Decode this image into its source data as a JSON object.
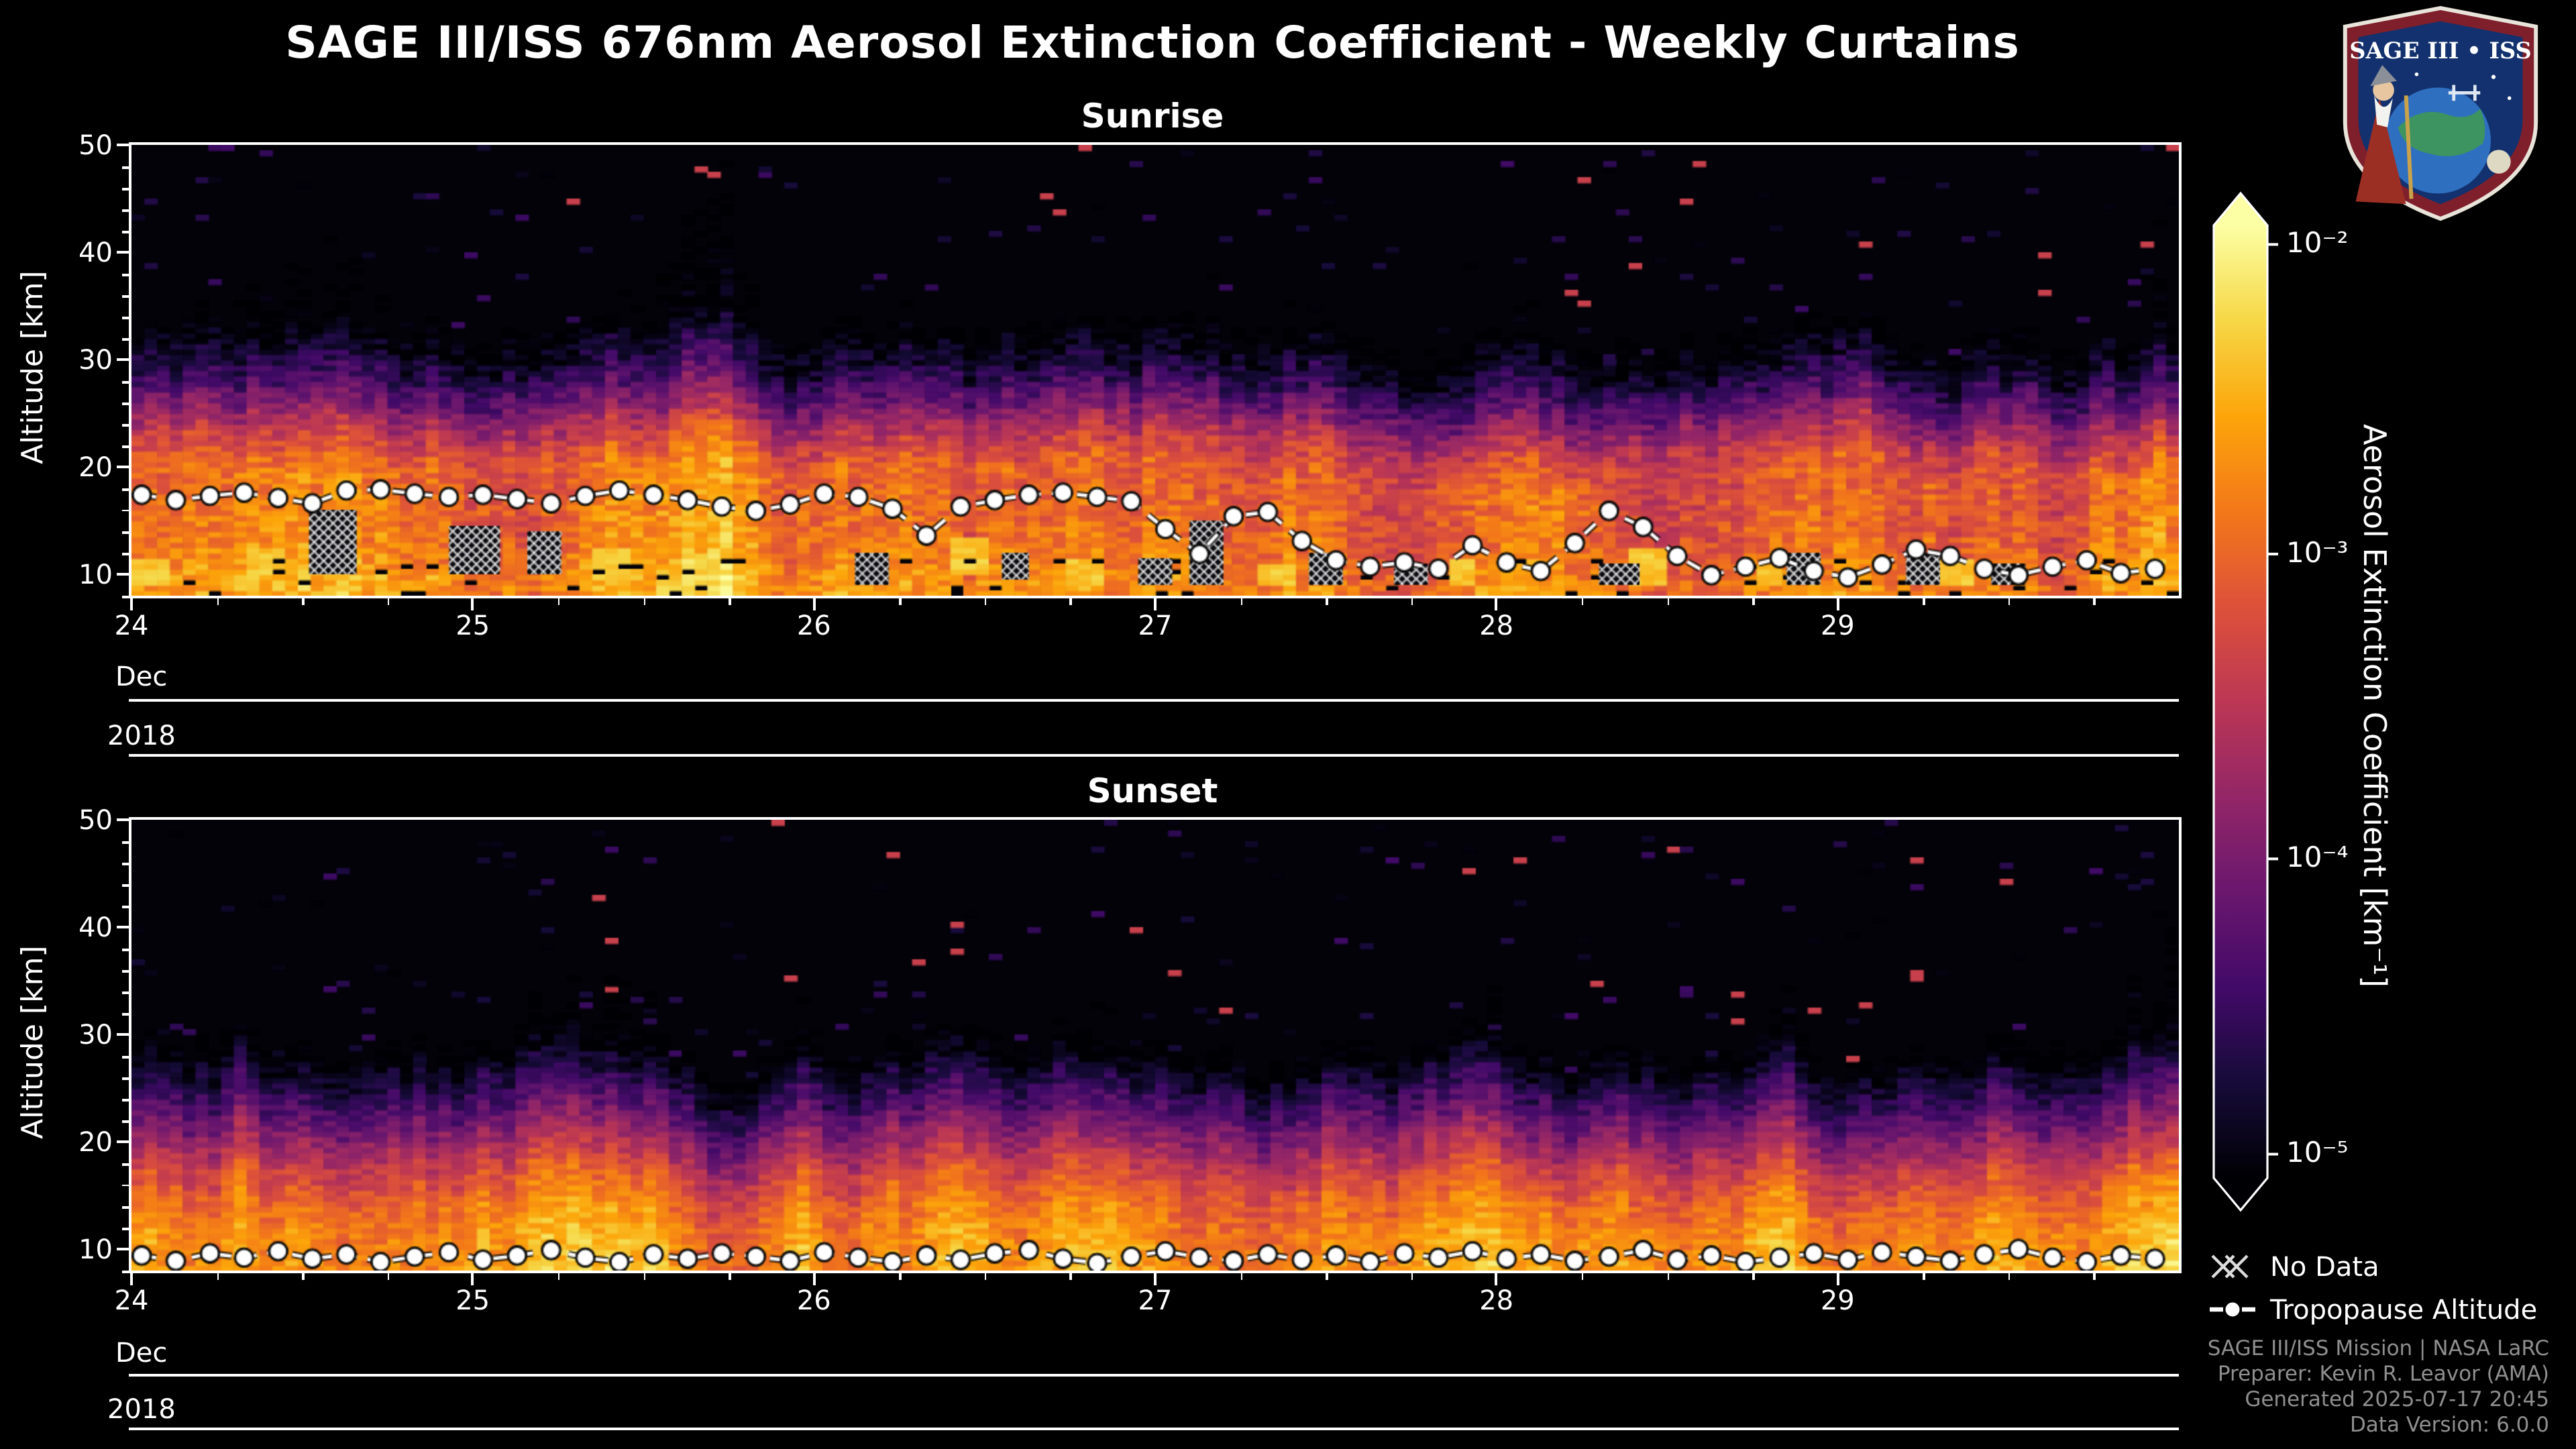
{
  "page": {
    "title": "SAGE III/ISS 676nm Aerosol Extinction Coefficient - Weekly Curtains",
    "background": "#000000"
  },
  "logo": {
    "text": "SAGE III • ISS"
  },
  "colorbar": {
    "label": "Aerosol Extinction Coefficient [km⁻¹]",
    "scale": "log",
    "range": [
      "1e-5",
      "1e-2"
    ],
    "ticks": [
      {
        "label": "10⁻²",
        "frac_from_top": 0.02
      },
      {
        "label": "10⁻³",
        "frac_from_top": 0.345
      },
      {
        "label": "10⁻⁴",
        "frac_from_top": 0.665
      },
      {
        "label": "10⁻⁵",
        "frac_from_top": 0.975
      }
    ],
    "stops": [
      {
        "t": 0.0,
        "c": "#000004"
      },
      {
        "t": 0.1,
        "c": "#160b39"
      },
      {
        "t": 0.2,
        "c": "#420a68"
      },
      {
        "t": 0.3,
        "c": "#6a176e"
      },
      {
        "t": 0.4,
        "c": "#932667"
      },
      {
        "t": 0.5,
        "c": "#bc3754"
      },
      {
        "t": 0.6,
        "c": "#dd513a"
      },
      {
        "t": 0.7,
        "c": "#f37819"
      },
      {
        "t": 0.8,
        "c": "#fca50a"
      },
      {
        "t": 0.9,
        "c": "#f6d746"
      },
      {
        "t": 1.0,
        "c": "#fcffa4"
      }
    ]
  },
  "legend": {
    "no_data": "No Data",
    "tropopause": "Tropopause Altitude"
  },
  "credits": [
    "SAGE III/ISS Mission | NASA LaRC",
    "Preparer: Kevin R. Leavor (AMA)",
    "Generated 2025-07-17 20:45",
    "Data Version: 6.0.0"
  ],
  "chart_data": [
    {
      "type": "heatmap",
      "title": "Sunrise",
      "ylabel": "Altitude [km]",
      "xlabel_rows": [
        "Dec",
        "2018"
      ],
      "x_ticks": [
        "24",
        "25",
        "26",
        "27",
        "28",
        "29"
      ],
      "x_tick_days": [
        24,
        25,
        26,
        27,
        28,
        29
      ],
      "xlim": [
        24,
        30
      ],
      "ylim": [
        8,
        50
      ],
      "y_ticks": [
        10,
        20,
        30,
        40,
        50
      ],
      "x_minor_step": 0.25,
      "y_minor_step": 2,
      "grid": false,
      "legend_position": "outside-right",
      "colormap_range_log10": [
        -5,
        -2
      ],
      "columns": 160,
      "seed": 11,
      "noise": 0.5,
      "bottom_gaps": true,
      "profile_log10_vs_alt": [
        [
          8,
          -2.7
        ],
        [
          10,
          -2.75
        ],
        [
          12,
          -2.9
        ],
        [
          16,
          -3.0
        ],
        [
          20,
          -3.05
        ],
        [
          23,
          -3.5
        ],
        [
          26,
          -4.1
        ],
        [
          29,
          -4.65
        ],
        [
          32,
          -5.05
        ],
        [
          34,
          -5.45
        ],
        [
          50,
          -5.9
        ]
      ],
      "bright_patches": [
        {
          "day": [
            24.0,
            24.1
          ],
          "alt": [
            9,
            11
          ]
        },
        {
          "day": [
            24.35,
            24.45
          ],
          "alt": [
            10,
            12
          ]
        },
        {
          "day": [
            25.35,
            25.45
          ],
          "alt": [
            9.5,
            12
          ]
        },
        {
          "day": [
            25.6,
            25.7
          ],
          "alt": [
            10,
            11.5
          ]
        },
        {
          "day": [
            26.4,
            26.5
          ],
          "alt": [
            10,
            13
          ]
        },
        {
          "day": [
            26.75,
            26.85
          ],
          "alt": [
            9,
            11
          ]
        },
        {
          "day": [
            27.3,
            27.4
          ],
          "alt": [
            9,
            10.5
          ]
        },
        {
          "day": [
            27.85,
            27.95
          ],
          "alt": [
            9,
            11
          ]
        },
        {
          "day": [
            28.4,
            28.5
          ],
          "alt": [
            9,
            12
          ]
        },
        {
          "day": [
            28.75,
            28.85
          ],
          "alt": [
            9,
            10.5
          ]
        },
        {
          "day": [
            29.3,
            29.4
          ],
          "alt": [
            9,
            11
          ]
        }
      ],
      "no_data_regions": [
        {
          "day": [
            24.52,
            24.66
          ],
          "alt": [
            10,
            16
          ]
        },
        {
          "day": [
            24.93,
            25.08
          ],
          "alt": [
            10,
            14.5
          ]
        },
        {
          "day": [
            25.16,
            25.26
          ],
          "alt": [
            10,
            14
          ]
        },
        {
          "day": [
            26.12,
            26.22
          ],
          "alt": [
            9,
            12
          ]
        },
        {
          "day": [
            26.55,
            26.63
          ],
          "alt": [
            9.5,
            12
          ]
        },
        {
          "day": [
            26.95,
            27.05
          ],
          "alt": [
            9,
            11.5
          ]
        },
        {
          "day": [
            27.1,
            27.2
          ],
          "alt": [
            9,
            15
          ]
        },
        {
          "day": [
            27.45,
            27.55
          ],
          "alt": [
            9,
            12
          ]
        },
        {
          "day": [
            27.7,
            27.8
          ],
          "alt": [
            9,
            11
          ]
        },
        {
          "day": [
            28.3,
            28.42
          ],
          "alt": [
            9,
            11
          ]
        },
        {
          "day": [
            28.85,
            28.95
          ],
          "alt": [
            9,
            12
          ]
        },
        {
          "day": [
            29.2,
            29.3
          ],
          "alt": [
            9,
            12
          ]
        },
        {
          "day": [
            29.45,
            29.55
          ],
          "alt": [
            9,
            11
          ]
        }
      ],
      "tropopause": {
        "x_start": 24.03,
        "x_step": 0.1,
        "altitudes_km": [
          17.4,
          16.9,
          17.3,
          17.6,
          17.1,
          16.6,
          17.8,
          17.9,
          17.5,
          17.2,
          17.4,
          17.0,
          16.6,
          17.3,
          17.8,
          17.4,
          16.9,
          16.3,
          15.9,
          16.5,
          17.5,
          17.2,
          16.1,
          13.6,
          16.3,
          16.9,
          17.4,
          17.6,
          17.2,
          16.8,
          14.2,
          11.9,
          15.4,
          15.8,
          13.1,
          11.3,
          10.7,
          11.1,
          10.5,
          12.7,
          11.1,
          10.3,
          12.9,
          15.9,
          14.4,
          11.7,
          9.9,
          10.7,
          11.5,
          10.3,
          9.7,
          10.9,
          12.3,
          11.7,
          10.5,
          9.9,
          10.7,
          11.3,
          10.1,
          10.5
        ]
      }
    },
    {
      "type": "heatmap",
      "title": "Sunset",
      "ylabel": "Altitude [km]",
      "xlabel_rows": [
        "Dec",
        "2018"
      ],
      "x_ticks": [
        "24",
        "25",
        "26",
        "27",
        "28",
        "29"
      ],
      "x_tick_days": [
        24,
        25,
        26,
        27,
        28,
        29
      ],
      "xlim": [
        24,
        30
      ],
      "ylim": [
        8,
        50
      ],
      "y_ticks": [
        10,
        20,
        30,
        40,
        50
      ],
      "x_minor_step": 0.25,
      "y_minor_step": 2,
      "grid": false,
      "legend_position": "outside-right",
      "colormap_range_log10": [
        -5,
        -2
      ],
      "columns": 160,
      "seed": 42,
      "noise": 0.42,
      "bottom_gaps": false,
      "profile_log10_vs_alt": [
        [
          8,
          -2.6
        ],
        [
          11,
          -2.7
        ],
        [
          14,
          -2.9
        ],
        [
          17,
          -3.25
        ],
        [
          20,
          -3.75
        ],
        [
          23,
          -4.25
        ],
        [
          26,
          -4.7
        ],
        [
          28,
          -5.05
        ],
        [
          31,
          -5.5
        ],
        [
          50,
          -5.95
        ]
      ],
      "bright_patches": [],
      "no_data_regions": [],
      "tropopause": {
        "x_start": 24.03,
        "x_step": 0.1,
        "altitudes_km": [
          9.4,
          8.9,
          9.6,
          9.2,
          9.8,
          9.1,
          9.5,
          8.8,
          9.3,
          9.7,
          9.0,
          9.4,
          9.9,
          9.2,
          8.8,
          9.5,
          9.1,
          9.6,
          9.3,
          8.9,
          9.7,
          9.2,
          8.8,
          9.4,
          9.0,
          9.6,
          9.9,
          9.1,
          8.7,
          9.3,
          9.8,
          9.2,
          8.9,
          9.5,
          9.0,
          9.4,
          8.8,
          9.6,
          9.2,
          9.8,
          9.1,
          9.5,
          8.9,
          9.3,
          9.9,
          9.0,
          9.4,
          8.8,
          9.2,
          9.6,
          9.0,
          9.7,
          9.3,
          8.9,
          9.5,
          10.0,
          9.2,
          8.8,
          9.4,
          9.1
        ]
      }
    }
  ]
}
